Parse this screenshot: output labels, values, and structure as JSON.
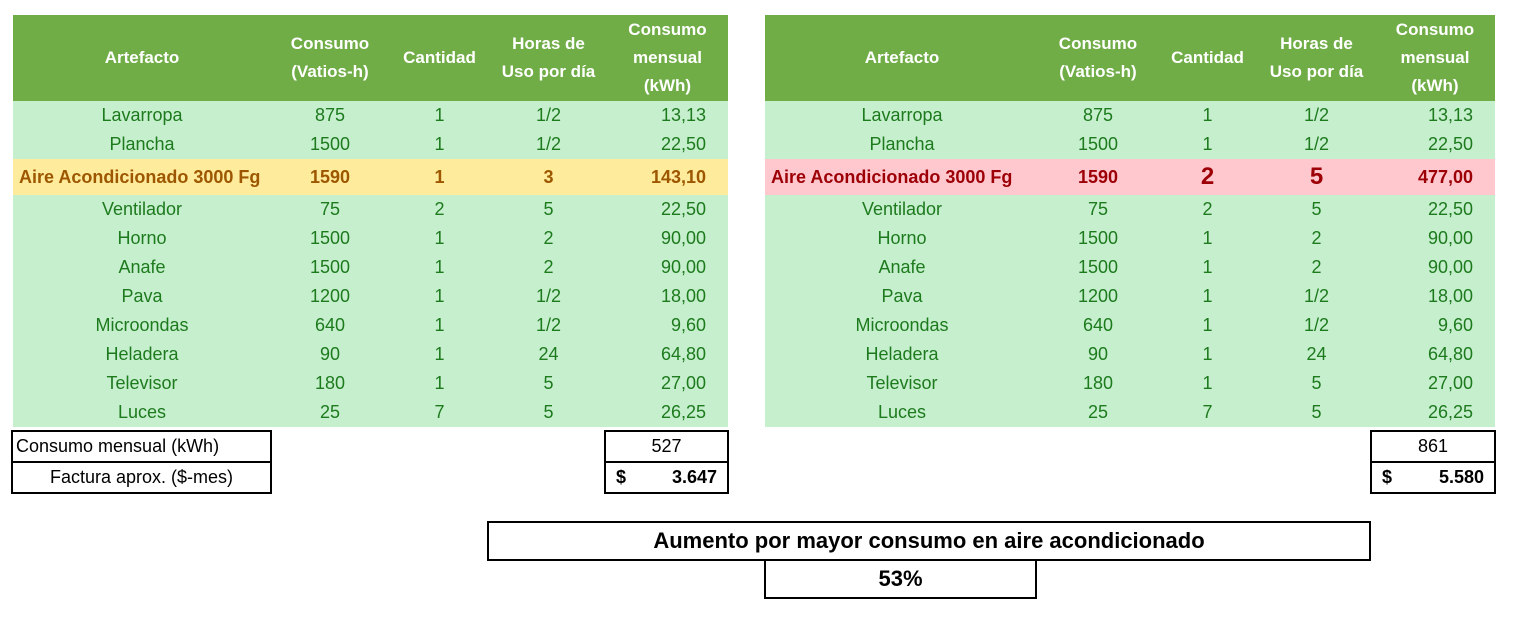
{
  "headers": [
    "Artefacto",
    "Consumo\n(Vatios-h)",
    "Cantidad",
    "Horas de\nUso por día",
    "Consumo\nmensual\n(kWh)"
  ],
  "left": {
    "rows": [
      {
        "artefacto": "Lavarropa",
        "consumo": "875",
        "cantidad": "1",
        "horas": "1/2",
        "mensual": "13,13"
      },
      {
        "artefacto": "Plancha",
        "consumo": "1500",
        "cantidad": "1",
        "horas": "1/2",
        "mensual": "22,50"
      },
      {
        "artefacto": "Aire Acondicionado 3000 Fg",
        "consumo": "1590",
        "cantidad": "1",
        "horas": "3",
        "mensual": "143,10",
        "highlight": true
      },
      {
        "artefacto": "Ventilador",
        "consumo": "75",
        "cantidad": "2",
        "horas": "5",
        "mensual": "22,50"
      },
      {
        "artefacto": "Horno",
        "consumo": "1500",
        "cantidad": "1",
        "horas": "2",
        "mensual": "90,00"
      },
      {
        "artefacto": "Anafe",
        "consumo": "1500",
        "cantidad": "1",
        "horas": "2",
        "mensual": "90,00"
      },
      {
        "artefacto": "Pava",
        "consumo": "1200",
        "cantidad": "1",
        "horas": "1/2",
        "mensual": "18,00"
      },
      {
        "artefacto": "Microondas",
        "consumo": "640",
        "cantidad": "1",
        "horas": "1/2",
        "mensual": "9,60"
      },
      {
        "artefacto": "Heladera",
        "consumo": "90",
        "cantidad": "1",
        "horas": "24",
        "mensual": "64,80"
      },
      {
        "artefacto": "Televisor",
        "consumo": "180",
        "cantidad": "1",
        "horas": "5",
        "mensual": "27,00"
      },
      {
        "artefacto": "Luces",
        "consumo": "25",
        "cantidad": "7",
        "horas": "5",
        "mensual": "26,25"
      }
    ],
    "consumo_label": "Consumo mensual (kWh)",
    "factura_label": "Factura aprox. ($-mes)",
    "consumo_total": "527",
    "currency": "$",
    "factura_total": "3.647"
  },
  "right": {
    "rows": [
      {
        "artefacto": "Lavarropa",
        "consumo": "875",
        "cantidad": "1",
        "horas": "1/2",
        "mensual": "13,13"
      },
      {
        "artefacto": "Plancha",
        "consumo": "1500",
        "cantidad": "1",
        "horas": "1/2",
        "mensual": "22,50"
      },
      {
        "artefacto": "Aire Acondicionado 3000 Fg",
        "consumo": "1590",
        "cantidad": "2",
        "horas": "5",
        "mensual": "477,00",
        "highlight": true
      },
      {
        "artefacto": "Ventilador",
        "consumo": "75",
        "cantidad": "2",
        "horas": "5",
        "mensual": "22,50"
      },
      {
        "artefacto": "Horno",
        "consumo": "1500",
        "cantidad": "1",
        "horas": "2",
        "mensual": "90,00"
      },
      {
        "artefacto": "Anafe",
        "consumo": "1500",
        "cantidad": "1",
        "horas": "2",
        "mensual": "90,00"
      },
      {
        "artefacto": "Pava",
        "consumo": "1200",
        "cantidad": "1",
        "horas": "1/2",
        "mensual": "18,00"
      },
      {
        "artefacto": "Microondas",
        "consumo": "640",
        "cantidad": "1",
        "horas": "1/2",
        "mensual": "9,60"
      },
      {
        "artefacto": "Heladera",
        "consumo": "90",
        "cantidad": "1",
        "horas": "24",
        "mensual": "64,80"
      },
      {
        "artefacto": "Televisor",
        "consumo": "180",
        "cantidad": "1",
        "horas": "5",
        "mensual": "27,00"
      },
      {
        "artefacto": "Luces",
        "consumo": "25",
        "cantidad": "7",
        "horas": "5",
        "mensual": "26,25"
      }
    ],
    "consumo_total": "861",
    "currency": "$",
    "factura_total": "5.580"
  },
  "summary": {
    "title": "Aumento por mayor consumo en aire acondicionado",
    "value": "53%"
  },
  "colors": {
    "header_green": "#70ad47",
    "row_green": "#c6efce",
    "text_green": "#1d7a1d",
    "highlight_yellow": "#ffeb9c",
    "highlight_yellow_text": "#9c5700",
    "highlight_red": "#ffc7ce",
    "highlight_red_text": "#9c0006"
  }
}
